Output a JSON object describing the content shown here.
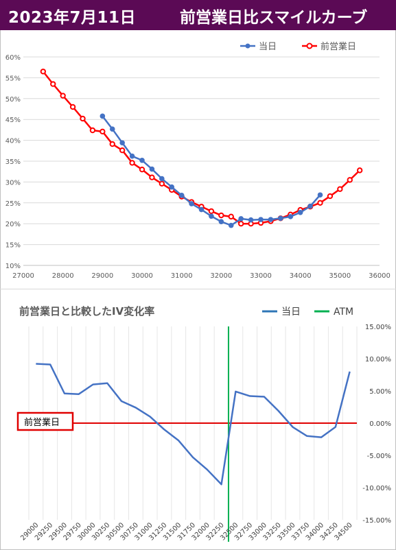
{
  "header": {
    "date": "2023年7月11日",
    "title": "前営業日比スマイルカーブ"
  },
  "colors": {
    "header_bg": "#5b0a55",
    "today": "#4472c4",
    "prev": "#ff0000",
    "diff_line": "#4472c4",
    "atm": "#00b050"
  },
  "chart_data": [
    {
      "type": "line",
      "legend": [
        "当日",
        "前営業日"
      ],
      "xlim": [
        27000,
        36000
      ],
      "xticks": [
        27000,
        28000,
        29000,
        30000,
        31000,
        32000,
        33000,
        34000,
        35000,
        36000
      ],
      "ylim": [
        0.1,
        0.6
      ],
      "yticks": [
        "10%",
        "15%",
        "20%",
        "25%",
        "30%",
        "35%",
        "40%",
        "45%",
        "50%",
        "55%",
        "60%"
      ],
      "grid": "horizontal",
      "legend_position": "top-right",
      "series": [
        {
          "name": "当日",
          "x": [
            29000,
            29250,
            29500,
            29750,
            30000,
            30250,
            30500,
            30750,
            31000,
            31250,
            31500,
            31750,
            32000,
            32250,
            32500,
            32750,
            33000,
            33250,
            33500,
            33750,
            34000,
            34250,
            34500
          ],
          "y": [
            0.458,
            0.427,
            0.394,
            0.362,
            0.352,
            0.331,
            0.308,
            0.288,
            0.268,
            0.248,
            0.234,
            0.218,
            0.205,
            0.196,
            0.212,
            0.209,
            0.21,
            0.21,
            0.213,
            0.217,
            0.227,
            0.242,
            0.269
          ]
        },
        {
          "name": "前営業日",
          "x": [
            27500,
            27750,
            28000,
            28250,
            28500,
            28750,
            29000,
            29250,
            29500,
            29750,
            30000,
            30250,
            30500,
            30750,
            31000,
            31250,
            31500,
            31750,
            32000,
            32250,
            32500,
            32750,
            33000,
            33250,
            33500,
            33750,
            34000,
            34250,
            34500,
            34750,
            35000,
            35250,
            35500
          ],
          "y": [
            0.565,
            0.535,
            0.507,
            0.48,
            0.452,
            0.424,
            0.421,
            0.391,
            0.376,
            0.346,
            0.33,
            0.311,
            0.296,
            0.281,
            0.265,
            0.252,
            0.241,
            0.23,
            0.22,
            0.217,
            0.2,
            0.2,
            0.202,
            0.206,
            0.213,
            0.222,
            0.233,
            0.241,
            0.25,
            0.266,
            0.283,
            0.305,
            0.328
          ]
        }
      ]
    },
    {
      "type": "line",
      "title": "前営業日と比較したIV変化率",
      "legend": [
        "当日",
        "ATM"
      ],
      "legend_position": "top-right",
      "categories": [
        "29000",
        "29250",
        "29500",
        "29750",
        "30000",
        "30250",
        "30500",
        "30750",
        "31000",
        "31250",
        "31500",
        "31750",
        "32000",
        "32250",
        "32500",
        "32750",
        "33000",
        "33250",
        "33500",
        "33750",
        "34000",
        "34250",
        "34500"
      ],
      "ylim": [
        -0.15,
        0.15
      ],
      "yticks": [
        "15.00%",
        "10.00%",
        "5.00%",
        "0.00%",
        "-5.00%",
        "-10.00%",
        "-15.00%"
      ],
      "grid": "vertical",
      "series": [
        {
          "name": "当日",
          "values": [
            0.092,
            0.091,
            0.046,
            0.045,
            0.06,
            0.062,
            0.034,
            0.024,
            0.01,
            -0.01,
            -0.027,
            -0.053,
            -0.072,
            -0.095,
            0.049,
            0.042,
            0.041,
            0.019,
            -0.006,
            -0.02,
            -0.022,
            -0.006,
            0.08
          ]
        }
      ],
      "atm_between": [
        "32250",
        "32500"
      ],
      "baseline_label": "前営業日"
    }
  ]
}
